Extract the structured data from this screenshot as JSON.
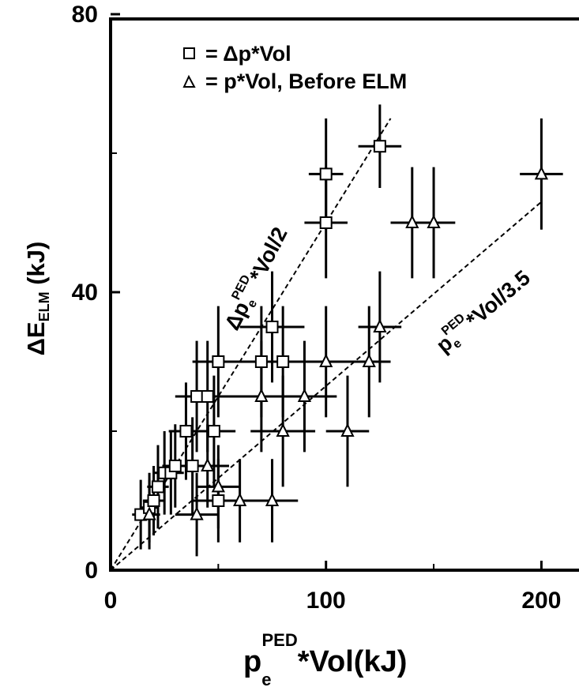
{
  "chart_data": {
    "type": "scatter",
    "xlim": [
      0,
      220
    ],
    "ylim": [
      0,
      80
    ],
    "xticks": [
      "0",
      "100",
      "200"
    ],
    "yticks": [
      "0",
      "40",
      "80"
    ],
    "xtick_values": [
      0,
      100,
      200
    ],
    "ytick_values": [
      0,
      40,
      80
    ],
    "xlabel": {
      "base": "p",
      "sup": "PED",
      "sub": "e",
      "rest": "*Vol(kJ)"
    },
    "ylabel": {
      "base": "ΔE",
      "sub": "ELM",
      "rest": " (kJ)"
    },
    "grid": false,
    "legend_position": "top-left",
    "legend": [
      {
        "marker": "square",
        "text": "= Δp*Vol"
      },
      {
        "marker": "triangle",
        "text": "= p*Vol, Before ELM"
      }
    ],
    "series": [
      {
        "marker": "square",
        "points": [
          {
            "x": 14,
            "y": 8,
            "xerr": 4,
            "yerr": 5
          },
          {
            "x": 18,
            "y": 9,
            "xerr": 4,
            "yerr": 5
          },
          {
            "x": 20,
            "y": 10,
            "xerr": 5,
            "yerr": 5
          },
          {
            "x": 22,
            "y": 12,
            "xerr": 5,
            "yerr": 6
          },
          {
            "x": 25,
            "y": 14,
            "xerr": 5,
            "yerr": 6
          },
          {
            "x": 28,
            "y": 14,
            "xerr": 6,
            "yerr": 6
          },
          {
            "x": 30,
            "y": 15,
            "xerr": 6,
            "yerr": 6
          },
          {
            "x": 35,
            "y": 20,
            "xerr": 8,
            "yerr": 7
          },
          {
            "x": 38,
            "y": 15,
            "xerr": 8,
            "yerr": 7
          },
          {
            "x": 40,
            "y": 25,
            "xerr": 10,
            "yerr": 8
          },
          {
            "x": 45,
            "y": 25,
            "xerr": 10,
            "yerr": 8
          },
          {
            "x": 48,
            "y": 20,
            "xerr": 10,
            "yerr": 8
          },
          {
            "x": 50,
            "y": 30,
            "xerr": 12,
            "yerr": 8
          },
          {
            "x": 50,
            "y": 10,
            "xerr": 12,
            "yerr": 6
          },
          {
            "x": 70,
            "y": 30,
            "xerr": 15,
            "yerr": 8
          },
          {
            "x": 75,
            "y": 35,
            "xerr": 15,
            "yerr": 8
          },
          {
            "x": 80,
            "y": 30,
            "xerr": 15,
            "yerr": 8
          },
          {
            "x": 100,
            "y": 50,
            "xerr": 10,
            "yerr": 8
          },
          {
            "x": 100,
            "y": 57,
            "xerr": 8,
            "yerr": 8
          },
          {
            "x": 125,
            "y": 61,
            "xerr": 10,
            "yerr": 6
          }
        ]
      },
      {
        "marker": "triangle",
        "points": [
          {
            "x": 18,
            "y": 8,
            "xerr": 5,
            "yerr": 5
          },
          {
            "x": 40,
            "y": 8,
            "xerr": 10,
            "yerr": 6
          },
          {
            "x": 45,
            "y": 15,
            "xerr": 10,
            "yerr": 6
          },
          {
            "x": 50,
            "y": 12,
            "xerr": 10,
            "yerr": 6
          },
          {
            "x": 60,
            "y": 10,
            "xerr": 12,
            "yerr": 6
          },
          {
            "x": 75,
            "y": 10,
            "xerr": 12,
            "yerr": 6
          },
          {
            "x": 70,
            "y": 25,
            "xerr": 15,
            "yerr": 8
          },
          {
            "x": 80,
            "y": 20,
            "xerr": 15,
            "yerr": 8
          },
          {
            "x": 90,
            "y": 25,
            "xerr": 15,
            "yerr": 8
          },
          {
            "x": 100,
            "y": 30,
            "xerr": 15,
            "yerr": 8
          },
          {
            "x": 110,
            "y": 20,
            "xerr": 10,
            "yerr": 8
          },
          {
            "x": 120,
            "y": 30,
            "xerr": 10,
            "yerr": 8
          },
          {
            "x": 125,
            "y": 35,
            "xerr": 10,
            "yerr": 8
          },
          {
            "x": 140,
            "y": 50,
            "xerr": 10,
            "yerr": 8
          },
          {
            "x": 150,
            "y": 50,
            "xerr": 10,
            "yerr": 8
          },
          {
            "x": 200,
            "y": 57,
            "xerr": 10,
            "yerr": 8
          }
        ]
      }
    ],
    "fit_lines": [
      {
        "x": [
          0,
          130
        ],
        "y": [
          0,
          65
        ],
        "label": {
          "base": "Δp",
          "sup": "PED",
          "sub": "e",
          "rest": "*Vol/2"
        }
      },
      {
        "x": [
          0,
          200
        ],
        "y": [
          0,
          53
        ],
        "label": {
          "base": "p",
          "sup": "PED",
          "sub": "e",
          "rest": "*Vol/3.5"
        }
      }
    ]
  }
}
